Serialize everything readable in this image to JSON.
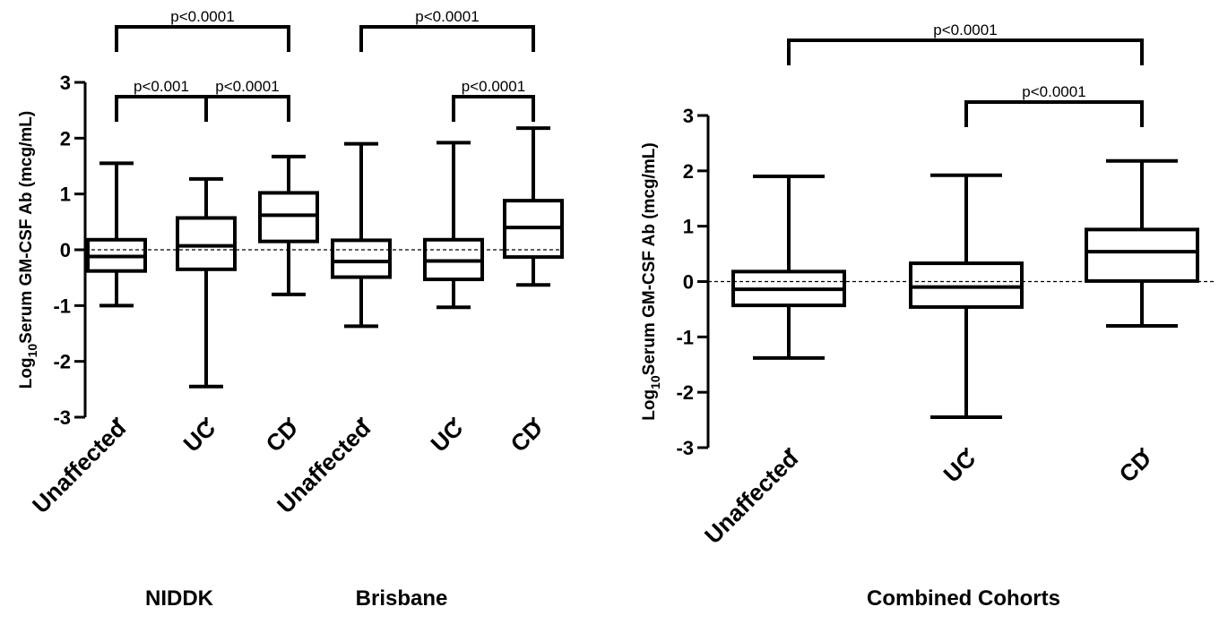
{
  "chart_data": [
    {
      "type": "box",
      "ylabel": {
        "prefix": "Log",
        "subscript": "10",
        "rest": "Serum GM-CSF Ab (mcg/mL)"
      },
      "ylim": [
        -3,
        3
      ],
      "yticks": [
        -3,
        -2,
        -1,
        0,
        1,
        2,
        3
      ],
      "reference_line": 0,
      "groups": [
        {
          "name": "NIDDK",
          "categories": [
            0,
            1,
            2
          ]
        },
        {
          "name": "Brisbane",
          "categories": [
            3,
            4,
            5
          ]
        }
      ],
      "categories": [
        "Unaffected",
        "UC",
        "CD",
        "Unaffected",
        "UC",
        "CD"
      ],
      "boxes": [
        {
          "min": -1.0,
          "q1": -0.38,
          "median": -0.12,
          "q3": 0.18,
          "max": 1.55
        },
        {
          "min": -2.45,
          "q1": -0.35,
          "median": 0.07,
          "q3": 0.57,
          "max": 1.27
        },
        {
          "min": -0.8,
          "q1": 0.15,
          "median": 0.62,
          "q3": 1.02,
          "max": 1.67
        },
        {
          "min": -1.37,
          "q1": -0.49,
          "median": -0.21,
          "q3": 0.17,
          "max": 1.9
        },
        {
          "min": -1.03,
          "q1": -0.53,
          "median": -0.2,
          "q3": 0.18,
          "max": 1.92
        },
        {
          "min": -0.63,
          "q1": -0.13,
          "median": 0.4,
          "q3": 0.88,
          "max": 2.18
        }
      ],
      "comparisons": [
        {
          "from": 0,
          "to": 2,
          "label": "p<0.0001",
          "tier": "top"
        },
        {
          "from": 0,
          "to": 1,
          "label": "p<0.001",
          "tier": "mid"
        },
        {
          "from": 1,
          "to": 2,
          "label": "p<0.0001",
          "tier": "mid"
        },
        {
          "from": 3,
          "to": 5,
          "label": "p<0.0001",
          "tier": "top"
        },
        {
          "from": 4,
          "to": 5,
          "label": "p<0.0001",
          "tier": "mid"
        }
      ]
    },
    {
      "type": "box",
      "ylabel": {
        "prefix": "Log",
        "subscript": "10",
        "rest": "Serum GM-CSF Ab (mcg/mL)"
      },
      "ylim": [
        -3,
        3
      ],
      "yticks": [
        -3,
        -2,
        -1,
        0,
        1,
        2,
        3
      ],
      "reference_line": 0,
      "groups": [
        {
          "name": "Combined Cohorts",
          "categories": [
            0,
            1,
            2
          ]
        }
      ],
      "categories": [
        "Unaffected",
        "UC",
        "CD"
      ],
      "boxes": [
        {
          "min": -1.38,
          "q1": -0.43,
          "median": -0.14,
          "q3": 0.18,
          "max": 1.9
        },
        {
          "min": -2.45,
          "q1": -0.46,
          "median": -0.1,
          "q3": 0.33,
          "max": 1.92
        },
        {
          "min": -0.8,
          "q1": 0.01,
          "median": 0.54,
          "q3": 0.94,
          "max": 2.18
        }
      ],
      "comparisons": [
        {
          "from": 0,
          "to": 2,
          "label": "p<0.0001",
          "tier": "top"
        },
        {
          "from": 1,
          "to": 2,
          "label": "p<0.0001",
          "tier": "mid"
        }
      ]
    }
  ]
}
